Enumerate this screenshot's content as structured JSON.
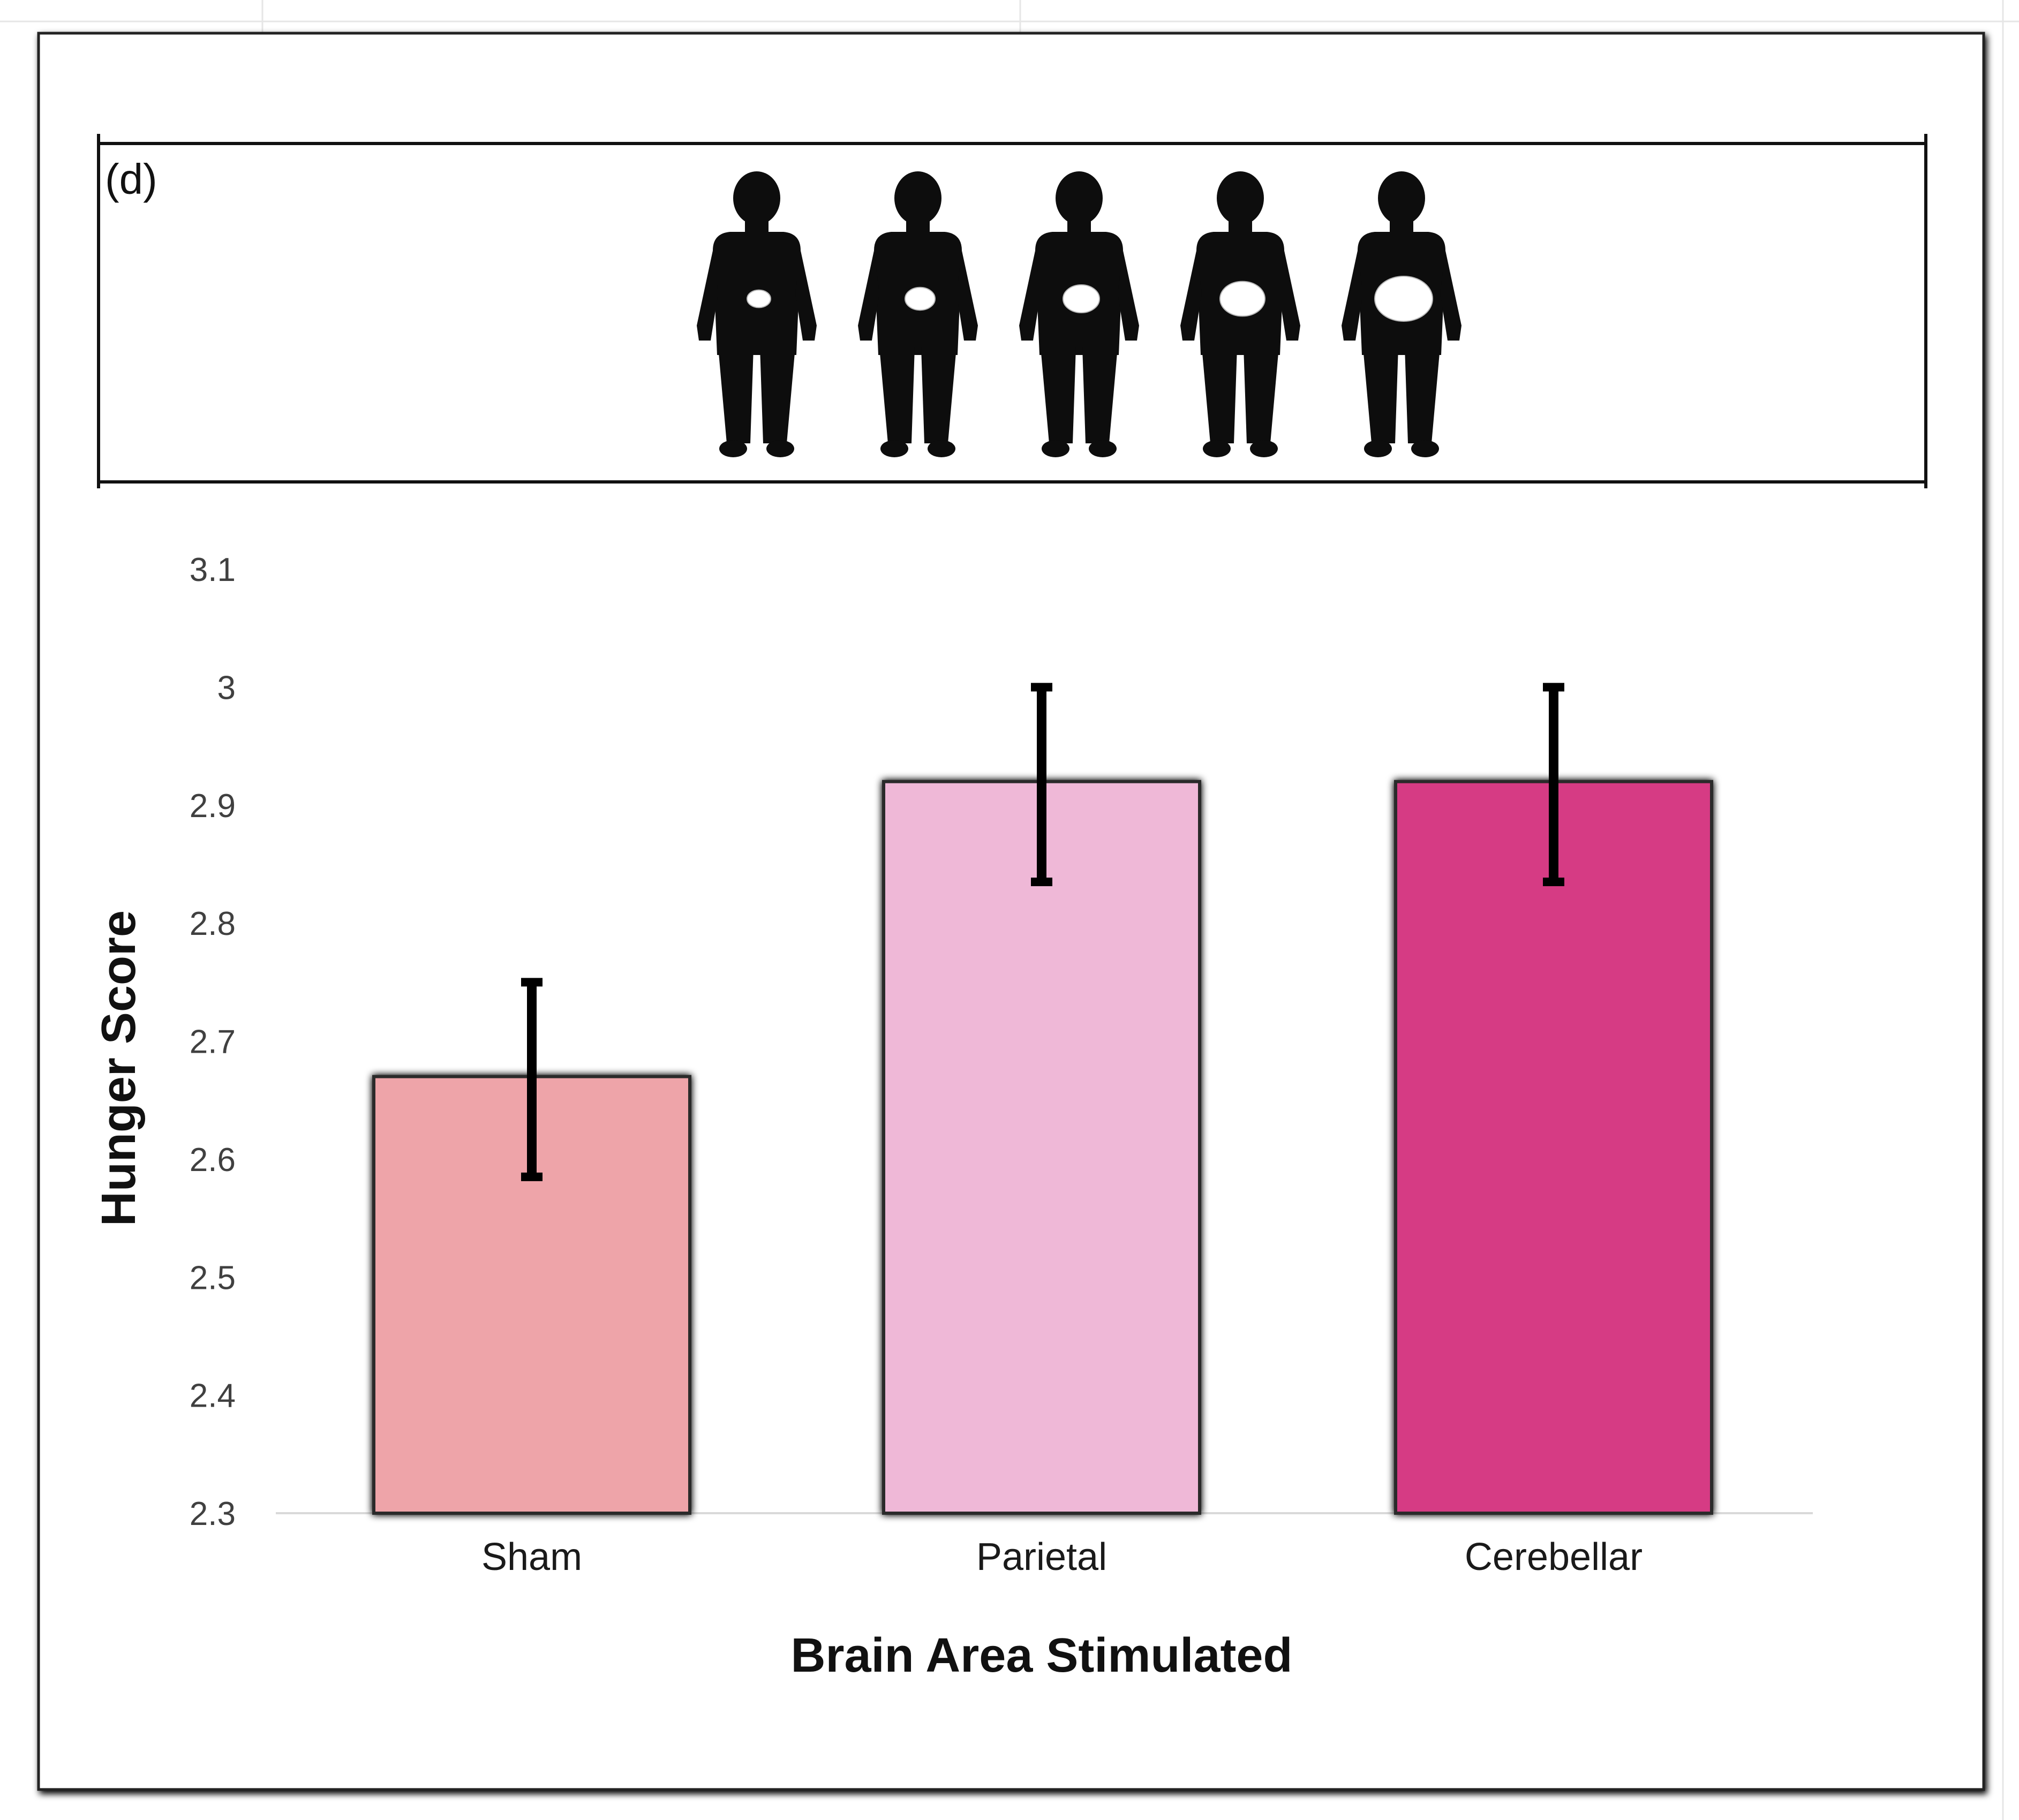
{
  "panel_label": "(d)",
  "illustration": {
    "description_icon": "human-silhouette-with-stomach-icon",
    "figure_count": 5,
    "stomach_fill_levels": [
      0.2,
      0.35,
      0.5,
      0.7,
      1.0
    ],
    "silhouette_color": "#0d0d0d",
    "stomach_color": "#ffffff"
  },
  "chart_data": {
    "type": "bar",
    "categories": [
      "Sham",
      "Parietal",
      "Cerebellar"
    ],
    "values": [
      2.67,
      2.92,
      2.92
    ],
    "error_lower": [
      2.585,
      2.835,
      2.835
    ],
    "error_upper": [
      2.75,
      3.0,
      3.0
    ],
    "colors": [
      "#eea4a9",
      "#efb8d7",
      "#d63a84"
    ],
    "xlabel": "Brain Area Stimulated",
    "ylabel": "Hunger Score",
    "ylim": [
      2.3,
      3.1
    ],
    "yticks": [
      2.3,
      2.4,
      2.5,
      2.6,
      2.7,
      2.8,
      2.9,
      3.0,
      3.1
    ],
    "ytick_labels": [
      "2.3",
      "2.4",
      "2.5",
      "2.6",
      "2.7",
      "2.8",
      "2.9",
      "3",
      "3.1"
    ],
    "grid": false,
    "legend": "none"
  }
}
